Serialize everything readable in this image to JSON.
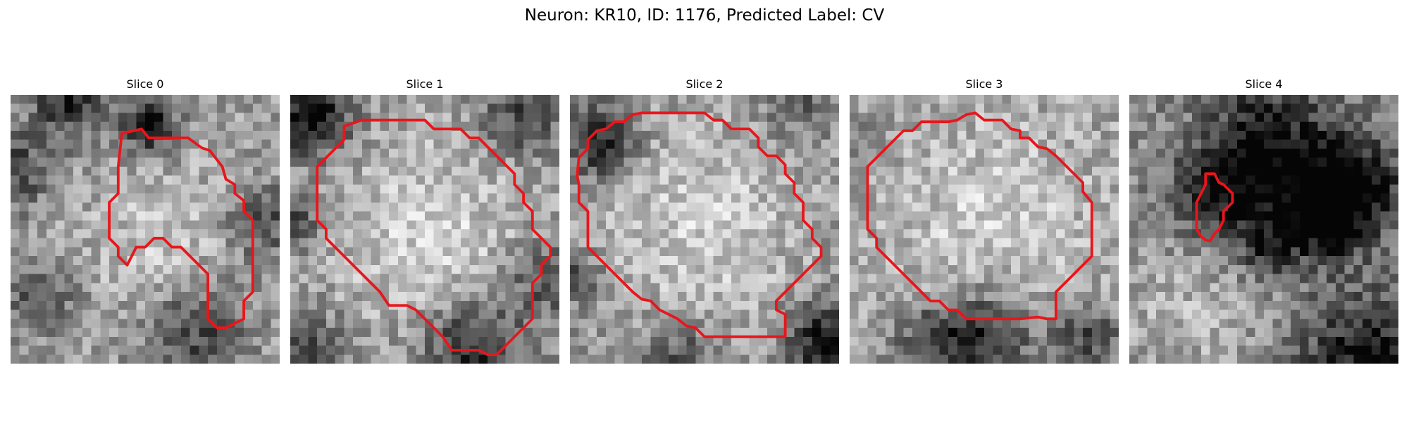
{
  "figure": {
    "title": "Neuron: KR10, ID: 1176, Predicted Label: CV"
  },
  "colors": {
    "contour": "#e8161b",
    "background": "#ffffff"
  },
  "panels": [
    {
      "title": "Slice 0",
      "seed": 11,
      "scheme": "s0"
    },
    {
      "title": "Slice 1",
      "seed": 23,
      "scheme": "s1"
    },
    {
      "title": "Slice 2",
      "seed": 37,
      "scheme": "s2"
    },
    {
      "title": "Slice 3",
      "seed": 51,
      "scheme": "s3"
    },
    {
      "title": "Slice 4",
      "seed": 67,
      "scheme": "s4"
    }
  ]
}
